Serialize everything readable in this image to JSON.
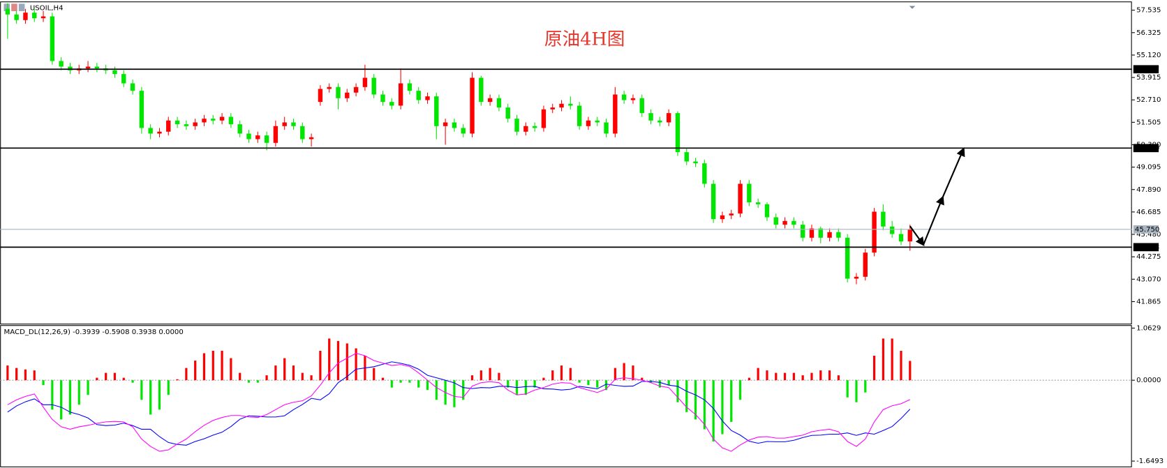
{
  "symbol": "USOIL,H4",
  "title": "原油4H图",
  "chart_data": [
    {
      "type": "candlestick",
      "open": [
        57.6,
        57.3,
        57.0,
        57.4,
        57.1,
        57.2,
        54.8,
        54.5,
        54.3,
        54.4,
        54.5,
        54.4,
        54.3,
        54.1,
        53.6,
        53.2,
        51.2,
        50.9,
        51.0,
        51.6,
        51.4,
        51.3,
        51.5,
        51.7,
        51.6,
        51.8,
        51.4,
        50.9,
        50.6,
        50.8,
        50.4,
        51.3,
        51.5,
        51.3,
        50.6,
        52.6,
        53.3,
        53.4,
        52.8,
        53.1,
        53.4,
        53.9,
        53.0,
        52.6,
        52.4,
        53.6,
        53.2,
        52.7,
        52.9,
        51.3,
        51.5,
        51.2,
        50.9,
        53.9,
        52.6,
        52.8,
        52.3,
        51.7,
        51.0,
        51.3,
        51.2,
        52.2,
        52.3,
        52.5,
        52.4,
        51.3,
        51.6,
        51.5,
        50.9,
        53.0,
        52.7,
        52.8,
        52.0,
        51.6,
        51.5,
        52.0,
        49.9,
        49.4,
        49.3,
        48.2,
        46.3,
        46.5,
        46.6,
        48.2,
        47.2,
        47.1,
        46.4,
        46.0,
        46.2,
        46.0,
        45.3,
        45.8,
        45.3,
        45.6,
        45.3,
        43.1,
        43.2,
        44.5,
        46.7,
        45.9,
        45.5,
        45.1
      ],
      "high": [
        57.9,
        57.5,
        57.6,
        57.6,
        57.5,
        57.4,
        55.0,
        54.7,
        54.6,
        54.8,
        54.7,
        54.6,
        54.5,
        54.3,
        53.8,
        53.4,
        51.4,
        51.2,
        51.8,
        51.8,
        51.6,
        51.7,
        51.9,
        51.9,
        52.0,
        52.0,
        51.6,
        51.1,
        51.0,
        51.0,
        51.6,
        51.8,
        51.7,
        51.5,
        50.9,
        53.5,
        53.6,
        53.6,
        53.3,
        53.6,
        54.6,
        54.1,
        53.2,
        52.8,
        54.4,
        53.8,
        53.4,
        53.1,
        53.1,
        51.7,
        51.7,
        51.4,
        54.2,
        54.0,
        53.0,
        53.0,
        52.5,
        51.9,
        51.5,
        51.5,
        52.4,
        52.5,
        52.7,
        52.9,
        52.6,
        51.8,
        51.8,
        51.7,
        53.4,
        53.2,
        53.0,
        53.0,
        52.2,
        51.8,
        52.2,
        52.1,
        50.1,
        49.6,
        49.5,
        48.4,
        46.7,
        46.8,
        48.4,
        48.4,
        47.4,
        47.2,
        46.6,
        46.4,
        46.4,
        46.2,
        46.0,
        45.9,
        45.8,
        45.8,
        45.5,
        43.4,
        44.7,
        46.9,
        47.1,
        46.2,
        45.8,
        46.0
      ],
      "low": [
        56.0,
        56.8,
        56.8,
        56.9,
        56.9,
        54.6,
        54.3,
        54.1,
        54.1,
        54.2,
        54.2,
        54.1,
        53.9,
        53.4,
        53.0,
        50.9,
        50.6,
        50.7,
        50.8,
        51.2,
        51.1,
        51.1,
        51.3,
        51.4,
        51.4,
        51.2,
        50.7,
        50.4,
        50.4,
        50.0,
        50.2,
        51.1,
        51.1,
        50.4,
        50.2,
        52.4,
        53.1,
        52.2,
        52.6,
        52.9,
        53.2,
        52.8,
        52.4,
        52.2,
        52.2,
        53.0,
        52.5,
        52.5,
        50.6,
        50.3,
        51.0,
        50.7,
        50.7,
        52.4,
        52.4,
        52.1,
        51.5,
        50.8,
        50.8,
        51.0,
        51.0,
        52.0,
        52.1,
        52.2,
        51.1,
        51.1,
        51.3,
        50.7,
        50.7,
        52.5,
        52.5,
        51.8,
        51.4,
        51.3,
        51.3,
        49.7,
        49.2,
        49.1,
        48.0,
        46.1,
        46.1,
        46.3,
        46.4,
        47.0,
        46.9,
        46.2,
        45.8,
        45.8,
        45.8,
        45.1,
        45.1,
        45.0,
        45.1,
        45.1,
        42.9,
        42.8,
        43.0,
        44.3,
        45.7,
        45.3,
        44.9,
        44.6
      ],
      "close": [
        57.3,
        57.0,
        57.4,
        57.1,
        57.2,
        54.8,
        54.5,
        54.3,
        54.4,
        54.5,
        54.4,
        54.3,
        54.1,
        53.6,
        53.2,
        51.2,
        50.9,
        51.0,
        51.6,
        51.4,
        51.3,
        51.5,
        51.7,
        51.6,
        51.8,
        51.4,
        50.9,
        50.6,
        50.8,
        50.4,
        51.3,
        51.5,
        51.3,
        50.6,
        50.7,
        53.3,
        53.4,
        52.8,
        53.1,
        53.4,
        53.9,
        53.0,
        52.6,
        52.4,
        53.6,
        53.2,
        52.7,
        52.9,
        51.3,
        51.5,
        51.2,
        50.9,
        53.9,
        52.6,
        52.8,
        52.3,
        51.7,
        51.0,
        51.3,
        51.2,
        52.2,
        52.3,
        52.5,
        52.4,
        51.3,
        51.6,
        51.5,
        50.9,
        53.0,
        52.7,
        52.8,
        52.0,
        51.6,
        51.5,
        52.0,
        49.9,
        49.4,
        49.3,
        48.2,
        46.3,
        46.5,
        46.6,
        48.2,
        47.2,
        47.1,
        46.4,
        46.0,
        46.2,
        46.0,
        45.3,
        45.8,
        45.3,
        45.6,
        45.3,
        43.1,
        43.2,
        44.5,
        46.7,
        45.9,
        45.5,
        45.1,
        45.75
      ],
      "up_color": "#ff0000",
      "down_color": "#00e600",
      "ylim": [
        40.68,
        58.0
      ],
      "yticks": [
        57.535,
        56.325,
        {
          "value": 55.12,
          "label": "55.120"
        },
        53.915,
        {
          "value": 52.71,
          "label": "52.710"
        },
        51.505,
        {
          "value": 50.3,
          "label": "50.300"
        },
        49.095,
        {
          "value": 47.89,
          "label": "47.890"
        },
        46.685,
        {
          "value": 45.48,
          "label": "45.480"
        },
        44.275,
        {
          "value": 43.07,
          "label": "43.070"
        },
        41.865
      ],
      "levels": [
        54.357,
        50.119,
        44.793
      ],
      "level_color": "#000000",
      "current_price": {
        "value": 45.75,
        "label": "45.750"
      },
      "current_price_color": "#a8b4c0"
    },
    {
      "type": "macd",
      "label": "MACD_DL(12,26,9) -0.3939 -0.5908 0.3938 0.0000",
      "histogram": [
        0.3,
        0.25,
        0.22,
        0.2,
        -0.1,
        -0.6,
        -0.8,
        -0.7,
        -0.5,
        -0.3,
        0.05,
        0.15,
        0.15,
        0.05,
        -0.05,
        -0.4,
        -0.7,
        -0.6,
        -0.3,
        0.02,
        0.25,
        0.4,
        0.55,
        0.6,
        0.6,
        0.45,
        0.15,
        -0.05,
        -0.05,
        0.1,
        0.3,
        0.45,
        0.3,
        0.15,
        0.1,
        0.6,
        0.85,
        0.8,
        0.75,
        0.65,
        0.5,
        0.25,
        0.05,
        -0.15,
        -0.05,
        -0.05,
        -0.15,
        -0.2,
        -0.4,
        -0.5,
        -0.55,
        -0.4,
        0.1,
        0.2,
        0.25,
        0.15,
        -0.15,
        -0.3,
        -0.3,
        -0.15,
        0.05,
        0.2,
        0.3,
        0.25,
        -0.05,
        -0.1,
        -0.15,
        -0.2,
        0.25,
        0.35,
        0.3,
        0.05,
        -0.05,
        -0.15,
        -0.1,
        -0.45,
        -0.65,
        -0.8,
        -1.0,
        -1.25,
        -1.1,
        -0.85,
        -0.4,
        0.05,
        0.25,
        0.2,
        0.15,
        0.15,
        0.15,
        0.1,
        0.15,
        0.2,
        0.2,
        0.1,
        -0.35,
        -0.45,
        -0.25,
        0.5,
        0.85,
        0.85,
        0.6,
        0.3938
      ],
      "macd_line": [
        -0.5,
        -0.4,
        -0.33,
        -0.28,
        -0.55,
        -0.8,
        -0.95,
        -1.0,
        -0.95,
        -0.92,
        -0.88,
        -0.85,
        -0.84,
        -0.85,
        -0.95,
        -1.2,
        -1.35,
        -1.45,
        -1.42,
        -1.3,
        -1.2,
        -1.05,
        -0.92,
        -0.82,
        -0.76,
        -0.72,
        -0.72,
        -0.75,
        -0.76,
        -0.7,
        -0.6,
        -0.5,
        -0.45,
        -0.42,
        -0.32,
        -0.1,
        0.15,
        0.35,
        0.45,
        0.55,
        0.5,
        0.4,
        0.35,
        0.3,
        0.32,
        0.28,
        0.15,
        0.0,
        -0.15,
        -0.25,
        -0.33,
        -0.35,
        -0.12,
        -0.05,
        -0.03,
        -0.05,
        -0.2,
        -0.3,
        -0.28,
        -0.2,
        -0.15,
        -0.08,
        -0.05,
        -0.06,
        -0.15,
        -0.2,
        -0.25,
        -0.18,
        0.02,
        0.05,
        0.03,
        0.0,
        -0.05,
        -0.12,
        -0.15,
        -0.35,
        -0.55,
        -0.7,
        -0.9,
        -1.2,
        -1.38,
        -1.45,
        -1.32,
        -1.22,
        -1.16,
        -1.15,
        -1.18,
        -1.18,
        -1.15,
        -1.12,
        -1.05,
        -1.02,
        -1.0,
        -1.05,
        -1.25,
        -1.35,
        -1.2,
        -0.85,
        -0.6,
        -0.52,
        -0.48,
        -0.3939
      ],
      "signal_line": [
        -0.65,
        -0.525,
        -0.44,
        -0.38,
        -0.5,
        -0.5,
        -0.55,
        -0.65,
        -0.7,
        -0.77,
        -0.905,
        -0.925,
        -0.915,
        -0.875,
        -0.925,
        -1.0,
        -1.0,
        -1.15,
        -1.27,
        -1.31,
        -1.325,
        -1.25,
        -1.195,
        -1.12,
        -1.06,
        -0.945,
        -0.795,
        -0.725,
        -0.735,
        -0.75,
        -0.75,
        -0.725,
        -0.6,
        -0.495,
        -0.37,
        -0.4,
        -0.275,
        -0.05,
        0.075,
        0.225,
        0.25,
        0.275,
        0.325,
        0.375,
        0.345,
        0.305,
        0.225,
        0.1,
        0.05,
        0.0,
        -0.055,
        -0.15,
        -0.17,
        -0.15,
        -0.155,
        -0.125,
        -0.125,
        -0.15,
        -0.13,
        -0.125,
        -0.175,
        -0.18,
        -0.2,
        -0.185,
        -0.125,
        -0.15,
        -0.175,
        -0.08,
        -0.105,
        -0.125,
        -0.12,
        -0.025,
        -0.025,
        -0.045,
        -0.1,
        -0.125,
        -0.225,
        -0.3,
        -0.4,
        -0.575,
        -0.83,
        -1.025,
        -1.12,
        -1.245,
        -1.285,
        -1.25,
        -1.255,
        -1.255,
        -1.225,
        -1.17,
        -1.125,
        -1.12,
        -1.1,
        -1.1,
        -1.075,
        -1.125,
        -1.075,
        -1.1,
        -1.025,
        -0.945,
        -0.78,
        -0.5908
      ],
      "up_color": "#ff0000",
      "down_color": "#00e600",
      "macd_color": "#ff00ff",
      "signal_color": "#0000ff",
      "ylim": [
        -1.775,
        1.108
      ],
      "yticks": [
        1.0629,
        {
          "value": 0,
          "label": "0.0000"
        },
        -1.6493
      ]
    }
  ]
}
